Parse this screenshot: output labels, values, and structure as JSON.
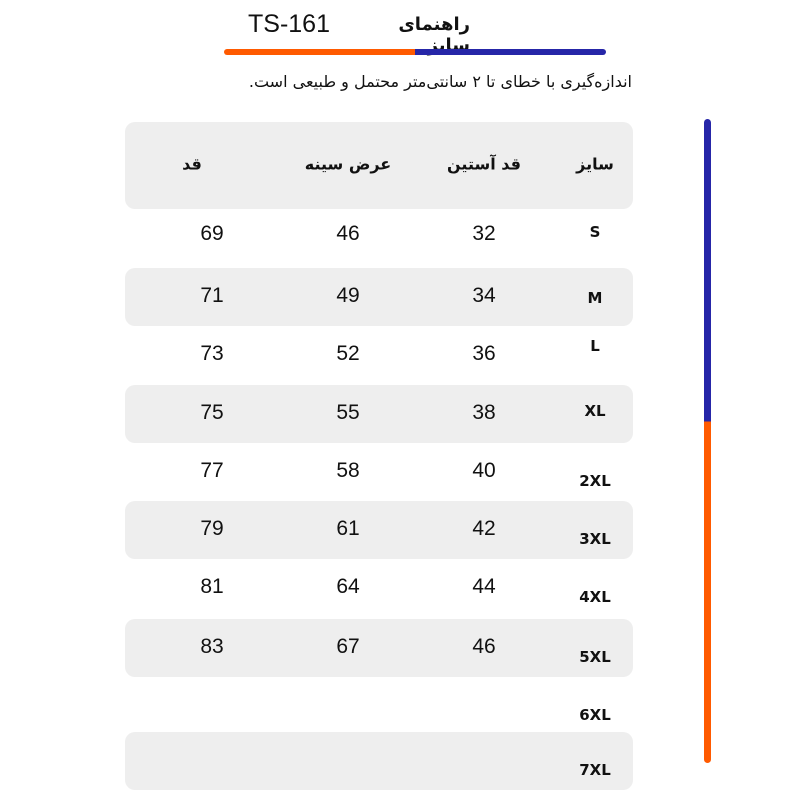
{
  "header": {
    "code": "TS-161",
    "title": "راهنمای سایز",
    "note": "اندازه‌گیری با خطای تا ۲ سانتی‌متر محتمل و طبیعی است.",
    "colors": {
      "orange": "#ff5a00",
      "blue": "#2626a8"
    }
  },
  "table": {
    "columns": [
      "سایز",
      "قد آستین",
      "عرض سینه",
      "قد"
    ],
    "rows": [
      {
        "size": "S",
        "sleeve": "32",
        "chest": "46",
        "length": "69"
      },
      {
        "size": "M",
        "sleeve": "34",
        "chest": "49",
        "length": "71"
      },
      {
        "size": "L",
        "sleeve": "36",
        "chest": "52",
        "length": "73"
      },
      {
        "size": "XL",
        "sleeve": "38",
        "chest": "55",
        "length": "75"
      },
      {
        "size": "2XL",
        "sleeve": "40",
        "chest": "58",
        "length": "77"
      },
      {
        "size": "3XL",
        "sleeve": "42",
        "chest": "61",
        "length": "79"
      },
      {
        "size": "4XL",
        "sleeve": "44",
        "chest": "64",
        "length": "81"
      },
      {
        "size": "5XL",
        "sleeve": "46",
        "chest": "67",
        "length": "83"
      },
      {
        "size": "6XL",
        "sleeve": "",
        "chest": "",
        "length": ""
      },
      {
        "size": "7XL",
        "sleeve": "",
        "chest": "",
        "length": ""
      }
    ]
  }
}
